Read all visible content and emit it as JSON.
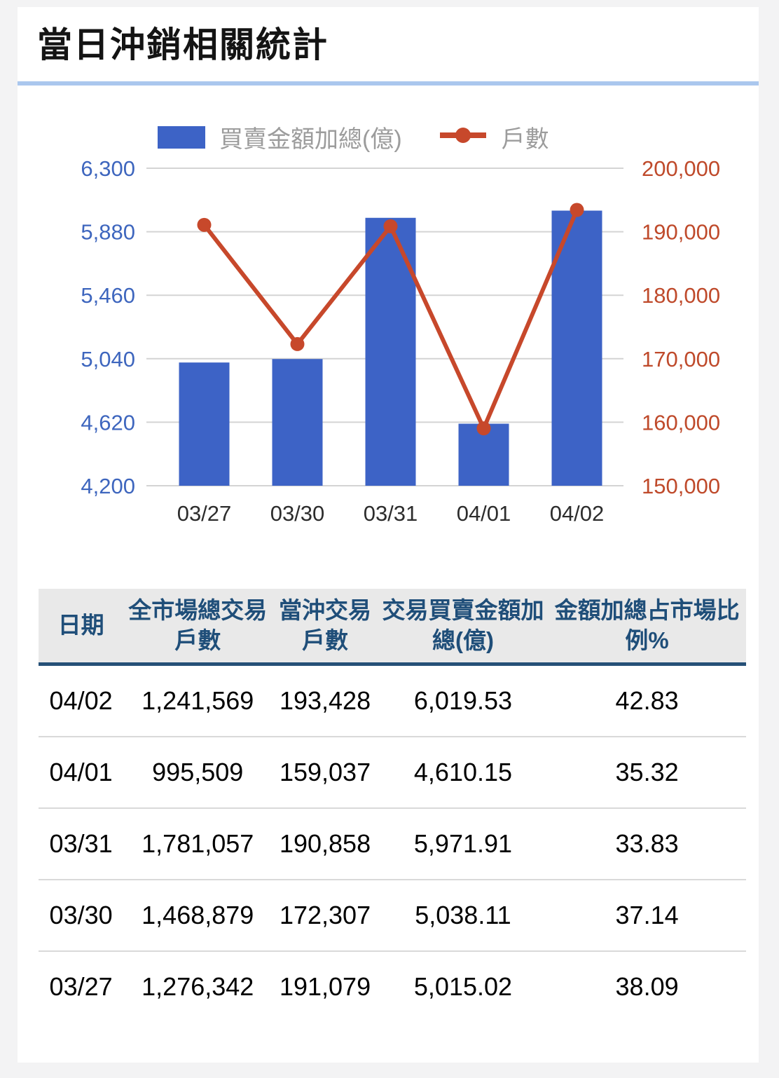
{
  "page": {
    "title": "當日沖銷相關統計"
  },
  "chart_data": {
    "type": "combo",
    "categories": [
      "03/27",
      "03/30",
      "03/31",
      "04/01",
      "04/02"
    ],
    "series": [
      {
        "name": "買賣金額加總(億)",
        "type": "bar",
        "axis": "left",
        "color": "#3d63c6",
        "values": [
          5015.02,
          5038.11,
          5971.91,
          4610.15,
          6019.53
        ]
      },
      {
        "name": "戶數",
        "type": "line",
        "axis": "right",
        "color": "#c7482b",
        "values": [
          191079,
          172307,
          190858,
          159037,
          193428
        ]
      }
    ],
    "left_axis": {
      "min": 4200,
      "max": 6300,
      "ticks": [
        "6,300",
        "5,880",
        "5,460",
        "5,040",
        "4,620",
        "4,200"
      ],
      "label_color": "#3e66be"
    },
    "right_axis": {
      "min": 150000,
      "max": 200000,
      "ticks": [
        "200,000",
        "190,000",
        "180,000",
        "170,000",
        "160,000",
        "150,000"
      ],
      "label_color": "#bf4a2b"
    },
    "x_label_color": "#2d2d2d",
    "grid": true,
    "gridline_color": "#d4d4d4",
    "legend_position": "top"
  },
  "table": {
    "headers": [
      "日期",
      "全市場總交易戶數",
      "當沖交易戶數",
      "交易買賣金額加總(億)",
      "金額加總占市場比例%"
    ],
    "rows": [
      [
        "04/02",
        "1,241,569",
        "193,428",
        "6,019.53",
        "42.83"
      ],
      [
        "04/01",
        "995,509",
        "159,037",
        "4,610.15",
        "35.32"
      ],
      [
        "03/31",
        "1,781,057",
        "190,858",
        "5,971.91",
        "33.83"
      ],
      [
        "03/30",
        "1,468,879",
        "172,307",
        "5,038.11",
        "37.14"
      ],
      [
        "03/27",
        "1,276,342",
        "191,079",
        "5,015.02",
        "38.09"
      ]
    ]
  }
}
